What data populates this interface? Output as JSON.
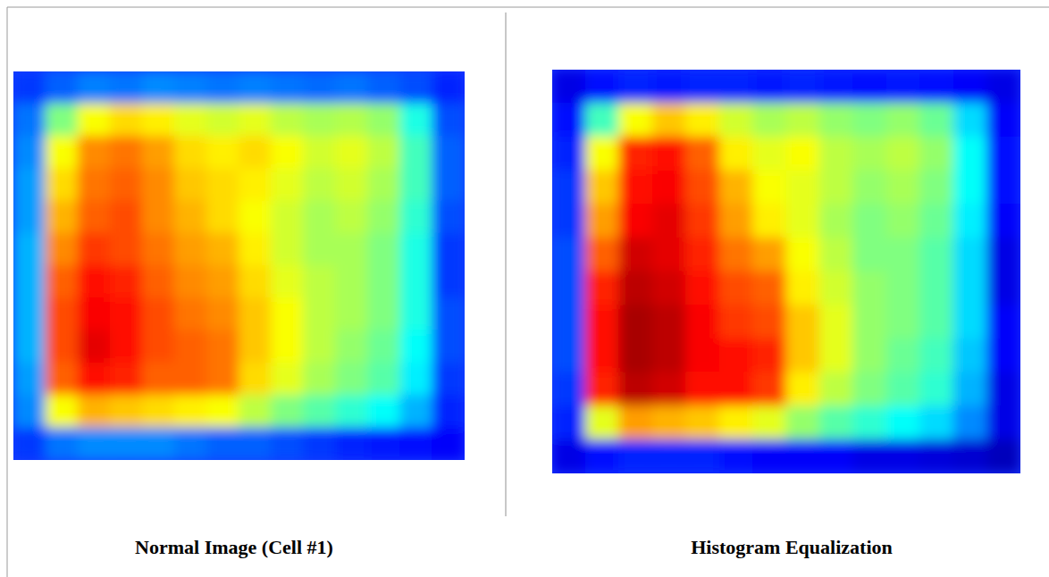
{
  "chart_data": [
    {
      "type": "heatmap",
      "title": "Normal Image (Cell #1)",
      "zlim": [
        0,
        100
      ],
      "cells": [
        [
          18,
          22,
          25,
          24,
          26,
          25,
          24,
          25,
          24,
          23,
          24,
          22,
          20,
          16
        ],
        [
          24,
          50,
          62,
          66,
          64,
          60,
          58,
          60,
          56,
          54,
          55,
          52,
          40,
          20
        ],
        [
          26,
          62,
          74,
          76,
          72,
          66,
          64,
          66,
          62,
          58,
          60,
          56,
          44,
          22
        ],
        [
          28,
          66,
          76,
          78,
          74,
          68,
          66,
          64,
          60,
          56,
          58,
          54,
          44,
          22
        ],
        [
          28,
          70,
          78,
          80,
          74,
          70,
          66,
          62,
          58,
          54,
          56,
          52,
          42,
          20
        ],
        [
          30,
          74,
          82,
          80,
          76,
          72,
          70,
          64,
          58,
          54,
          54,
          50,
          40,
          18
        ],
        [
          30,
          78,
          86,
          84,
          78,
          74,
          72,
          66,
          60,
          56,
          54,
          50,
          40,
          18
        ],
        [
          30,
          80,
          88,
          86,
          80,
          76,
          74,
          68,
          62,
          56,
          54,
          50,
          40,
          20
        ],
        [
          30,
          80,
          90,
          86,
          80,
          78,
          76,
          68,
          62,
          56,
          52,
          48,
          38,
          20
        ],
        [
          28,
          78,
          86,
          84,
          78,
          78,
          76,
          66,
          60,
          54,
          50,
          46,
          36,
          18
        ],
        [
          26,
          62,
          70,
          68,
          66,
          64,
          62,
          56,
          50,
          46,
          42,
          38,
          30,
          16
        ],
        [
          18,
          24,
          26,
          26,
          26,
          24,
          22,
          22,
          20,
          18,
          16,
          15,
          14,
          12
        ]
      ]
    },
    {
      "type": "heatmap",
      "title": "Histogram Equalization",
      "zlim": [
        0,
        100
      ],
      "cells": [
        [
          10,
          14,
          16,
          15,
          16,
          16,
          15,
          16,
          15,
          14,
          15,
          14,
          12,
          10
        ],
        [
          14,
          44,
          62,
          68,
          64,
          58,
          54,
          56,
          52,
          50,
          52,
          48,
          34,
          12
        ],
        [
          16,
          62,
          84,
          86,
          78,
          64,
          60,
          62,
          56,
          54,
          56,
          52,
          38,
          14
        ],
        [
          18,
          68,
          86,
          88,
          80,
          70,
          62,
          60,
          56,
          52,
          54,
          50,
          38,
          14
        ],
        [
          18,
          72,
          88,
          90,
          82,
          72,
          64,
          60,
          54,
          50,
          52,
          48,
          36,
          12
        ],
        [
          20,
          78,
          92,
          90,
          84,
          76,
          72,
          62,
          56,
          50,
          50,
          46,
          34,
          10
        ],
        [
          20,
          84,
          94,
          92,
          86,
          80,
          78,
          64,
          58,
          52,
          50,
          46,
          34,
          10
        ],
        [
          20,
          86,
          96,
          94,
          88,
          82,
          80,
          68,
          60,
          52,
          50,
          46,
          34,
          12
        ],
        [
          20,
          86,
          96,
          94,
          88,
          86,
          84,
          68,
          60,
          52,
          48,
          44,
          32,
          12
        ],
        [
          18,
          84,
          94,
          92,
          86,
          86,
          82,
          64,
          56,
          50,
          46,
          42,
          30,
          10
        ],
        [
          16,
          60,
          72,
          70,
          68,
          64,
          60,
          52,
          46,
          42,
          38,
          34,
          26,
          10
        ],
        [
          10,
          14,
          16,
          16,
          16,
          14,
          12,
          12,
          12,
          10,
          10,
          9,
          8,
          6
        ]
      ]
    }
  ]
}
